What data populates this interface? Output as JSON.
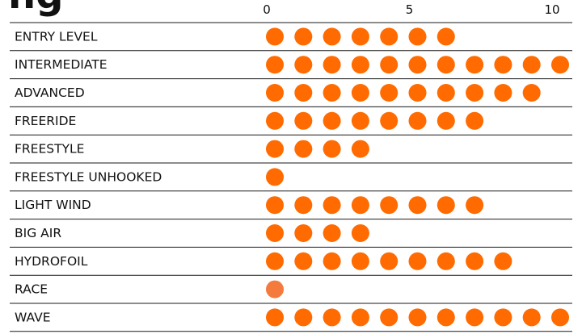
{
  "header": {
    "partial_title_glyphs": "ng"
  },
  "chart_data": {
    "type": "scatter",
    "title": "",
    "xlabel": "",
    "ylabel": "",
    "xlim": [
      0,
      10
    ],
    "x_ticks": [
      "0",
      "5",
      "10"
    ],
    "grid": true,
    "legend": "none",
    "dot_color": "#ff6b00",
    "faded_dot_color": "#f47a3d",
    "categories": [
      "ENTRY LEVEL",
      "INTERMEDIATE",
      "ADVANCED",
      "FREERIDE",
      "FREESTYLE",
      "FREESTYLE UNHOOKED",
      "LIGHT WIND",
      "BIG AIR",
      "HYDROFOIL",
      "RACE",
      "WAVE"
    ],
    "values": [
      7,
      11,
      10,
      8,
      4,
      1,
      8,
      4,
      9,
      1,
      11
    ]
  }
}
